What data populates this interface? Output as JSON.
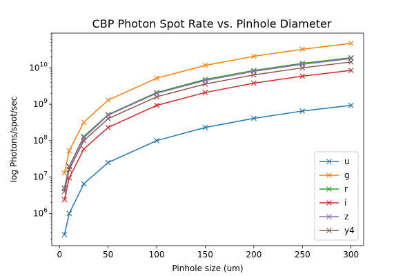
{
  "chart_data": {
    "type": "line",
    "title": "CBP Photon Spot Rate vs. Pinhole Diameter",
    "xlabel": "Pinhole size (um)",
    "ylabel": "log Photons/spot/sec",
    "yscale": "log",
    "xlim": [
      -8,
      313
    ],
    "ylim": [
      130000.0,
      90000000000.0
    ],
    "xticks": [
      0,
      50,
      100,
      150,
      200,
      250,
      300
    ],
    "xtick_labels": [
      "0",
      "50",
      "100",
      "150",
      "200",
      "250",
      "300"
    ],
    "yticks": [
      1000000.0,
      10000000.0,
      100000000.0,
      1000000000.0,
      10000000000.0
    ],
    "ytick_labels": [
      {
        "base": "10",
        "exp": "6"
      },
      {
        "base": "10",
        "exp": "7"
      },
      {
        "base": "10",
        "exp": "8"
      },
      {
        "base": "10",
        "exp": "9"
      },
      {
        "base": "10",
        "exp": "10"
      }
    ],
    "marker": "x",
    "legend_position": "lower right",
    "x": [
      5,
      10,
      25,
      50,
      100,
      150,
      200,
      250,
      300
    ],
    "series": [
      {
        "name": "u",
        "color": "#1f77b4",
        "values": [
          260000.0,
          1000000.0,
          6500000.0,
          25000000.0,
          100000000.0,
          230000000.0,
          410000000.0,
          650000000.0,
          930000000.0
        ]
      },
      {
        "name": "g",
        "color": "#ff7f0e",
        "values": [
          13000000.0,
          53000000.0,
          320000000.0,
          1300000000.0,
          5200000000.0,
          11700000000.0,
          20800000000.0,
          32500000000.0,
          47000000000.0
        ]
      },
      {
        "name": "r",
        "color": "#2ca02c",
        "values": [
          5000000.0,
          20000000.0,
          130000000.0,
          520000000.0,
          2100000000.0,
          4800000000.0,
          8500000000.0,
          13300000000.0,
          19000000000.0
        ]
      },
      {
        "name": "i",
        "color": "#d62728",
        "values": [
          2400000.0,
          9500000.0,
          59000000.0,
          230000000.0,
          930000000.0,
          2100000000.0,
          3800000000.0,
          5900000000.0,
          8500000000.0
        ]
      },
      {
        "name": "z",
        "color": "#9467bd",
        "values": [
          4800000.0,
          19000000.0,
          120000000.0,
          500000000.0,
          2000000000.0,
          4500000000.0,
          8000000000.0,
          12500000000.0,
          18000000000.0
        ]
      },
      {
        "name": "y4",
        "color": "#8c564b",
        "values": [
          4000000.0,
          16000000.0,
          100000000.0,
          400000000.0,
          1600000000.0,
          3600000000.0,
          6400000000.0,
          10000000000.0,
          14500000000.0
        ]
      }
    ]
  }
}
